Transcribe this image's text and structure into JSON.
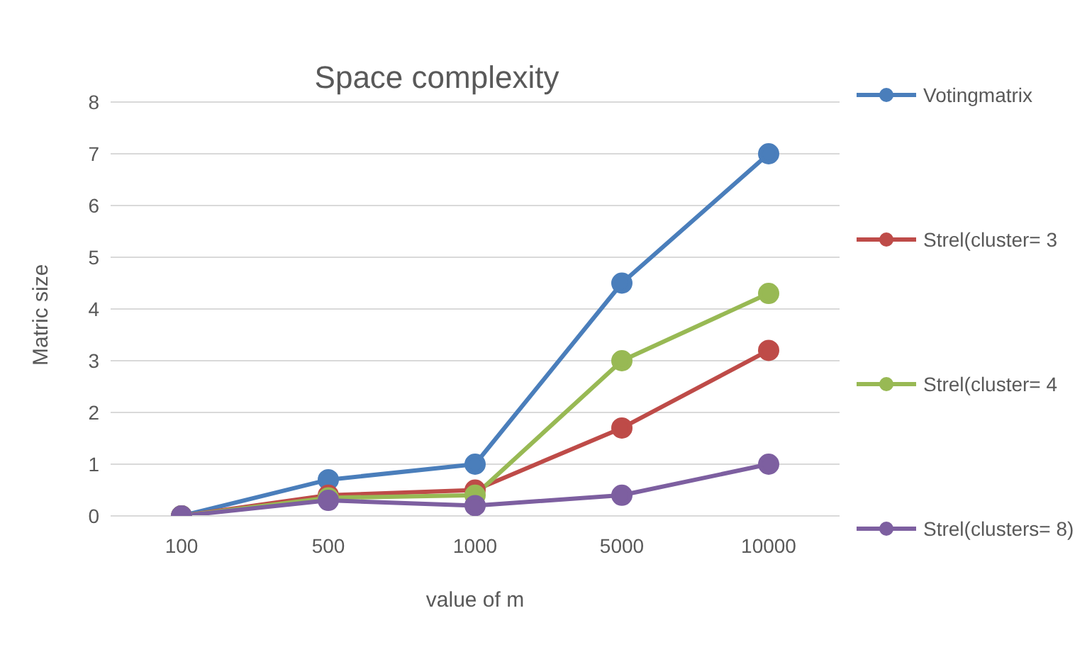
{
  "chart_data": {
    "type": "line",
    "title": "Space complexity",
    "xlabel": "value of m",
    "ylabel": "Matric size",
    "categories": [
      "100",
      "500",
      "1000",
      "5000",
      "10000"
    ],
    "series": [
      {
        "name": "Votingmatrix",
        "color": "#4a7ebb",
        "values": [
          0,
          0.7,
          1,
          4.5,
          7
        ]
      },
      {
        "name": "Strel(cluster= 3",
        "color": "#be4b48",
        "values": [
          0,
          0.4,
          0.5,
          1.7,
          3.2
        ]
      },
      {
        "name": "Strel(cluster= 4",
        "color": "#98b954",
        "values": [
          0,
          0.35,
          0.4,
          3,
          4.3
        ]
      },
      {
        "name": "Strel(clusters= 8)",
        "color": "#7d5fa0",
        "values": [
          0,
          0.3,
          0.2,
          0.4,
          1
        ]
      }
    ],
    "ylim": [
      0,
      8
    ],
    "yticks": [
      0,
      1,
      2,
      3,
      4,
      5,
      6,
      7,
      8
    ],
    "grid": "y",
    "legend": "right",
    "marker": "circle",
    "line_style": "solid"
  }
}
